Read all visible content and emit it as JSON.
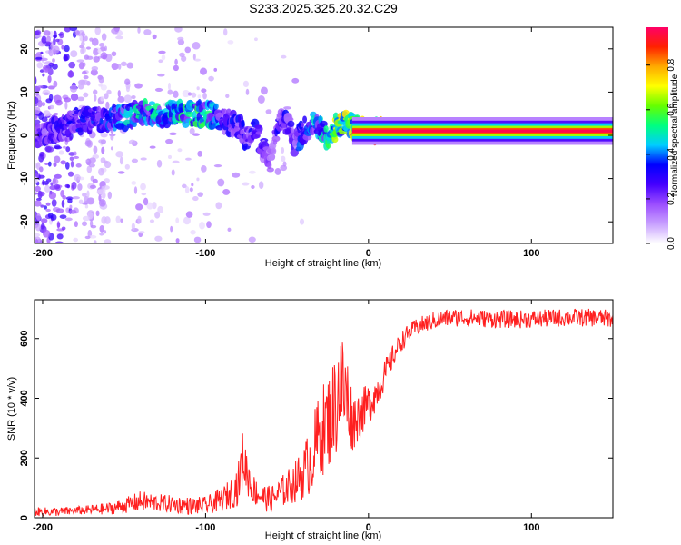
{
  "title": "S233.2025.325.20.32.C29",
  "chart_data": [
    {
      "type": "heatmap",
      "name": "spectrogram",
      "title": "S233.2025.325.20.32.C29",
      "xlabel": "Height of straight line (km)",
      "ylabel": "Frequency (Hz)",
      "xlim": [
        -205,
        150
      ],
      "ylim": [
        -25,
        25
      ],
      "xticks": [
        -200,
        -100,
        0,
        100
      ],
      "yticks": [
        -20,
        -10,
        0,
        10,
        20
      ],
      "colorbar": {
        "label": "Normalized spectral amplitude",
        "ticks": [
          0.0,
          0.2,
          0.4,
          0.6,
          0.8
        ],
        "range": [
          0,
          0.97
        ],
        "stops": [
          "#ffffff",
          "#c8a0ff",
          "#9b4dff",
          "#4400ff",
          "#0000ff",
          "#00ccff",
          "#00ff80",
          "#66ff00",
          "#ffff00",
          "#ffaa00",
          "#ff2200",
          "#ff0066"
        ]
      },
      "ridge": {
        "height_km": [
          -200,
          -180,
          -160,
          -140,
          -120,
          -100,
          -90,
          -80,
          -75,
          -70,
          -65,
          -60,
          -55,
          -50,
          -45,
          -40,
          -35,
          -30,
          -25,
          -20,
          -15,
          -10,
          -5,
          0,
          10,
          20,
          40,
          80,
          120,
          150
        ],
        "frequency_hz": [
          0,
          3,
          4,
          5,
          5,
          5,
          4,
          2,
          -1,
          2,
          -3,
          -6,
          4,
          3,
          -2,
          1,
          3,
          2,
          -1,
          2,
          3,
          2,
          1,
          1,
          1,
          1,
          1,
          1,
          1,
          1
        ],
        "amplitude": [
          0.25,
          0.3,
          0.35,
          0.45,
          0.45,
          0.5,
          0.35,
          0.3,
          0.3,
          0.3,
          0.25,
          0.2,
          0.3,
          0.3,
          0.3,
          0.35,
          0.4,
          0.45,
          0.5,
          0.6,
          0.7,
          0.75,
          0.8,
          0.85,
          0.9,
          0.95,
          0.95,
          0.95,
          0.95,
          0.95
        ]
      }
    },
    {
      "type": "line",
      "name": "snr",
      "xlabel": "Height of straight line (km)",
      "ylabel": "SNR (10 * v/v)",
      "xlim": [
        -205,
        150
      ],
      "ylim": [
        0,
        730
      ],
      "xticks": [
        -200,
        -100,
        0,
        100
      ],
      "yticks": [
        0,
        200,
        400,
        600
      ],
      "color": "#ff2020",
      "series": [
        {
          "name": "SNR",
          "x": [
            -205,
            -190,
            -175,
            -160,
            -150,
            -140,
            -130,
            -120,
            -110,
            -100,
            -95,
            -90,
            -85,
            -80,
            -77,
            -75,
            -72,
            -70,
            -65,
            -60,
            -55,
            -50,
            -45,
            -40,
            -35,
            -30,
            -25,
            -20,
            -18,
            -15,
            -12,
            -10,
            -5,
            0,
            5,
            10,
            15,
            20,
            25,
            30,
            40,
            50,
            60,
            80,
            100,
            120,
            140,
            150
          ],
          "y": [
            20,
            20,
            25,
            30,
            40,
            55,
            50,
            45,
            40,
            40,
            50,
            60,
            80,
            110,
            200,
            160,
            110,
            90,
            70,
            60,
            80,
            100,
            120,
            150,
            200,
            280,
            320,
            380,
            450,
            420,
            380,
            320,
            350,
            380,
            420,
            480,
            540,
            590,
            620,
            640,
            660,
            670,
            670,
            665,
            665,
            670,
            670,
            665
          ],
          "noise": [
            15,
            15,
            15,
            20,
            25,
            35,
            30,
            30,
            30,
            30,
            35,
            40,
            50,
            70,
            100,
            80,
            60,
            50,
            45,
            45,
            50,
            60,
            70,
            90,
            120,
            150,
            160,
            180,
            200,
            200,
            150,
            100,
            80,
            70,
            60,
            50,
            40,
            35,
            30,
            30,
            30,
            30,
            30,
            30,
            30,
            30,
            30,
            30
          ]
        }
      ]
    }
  ]
}
